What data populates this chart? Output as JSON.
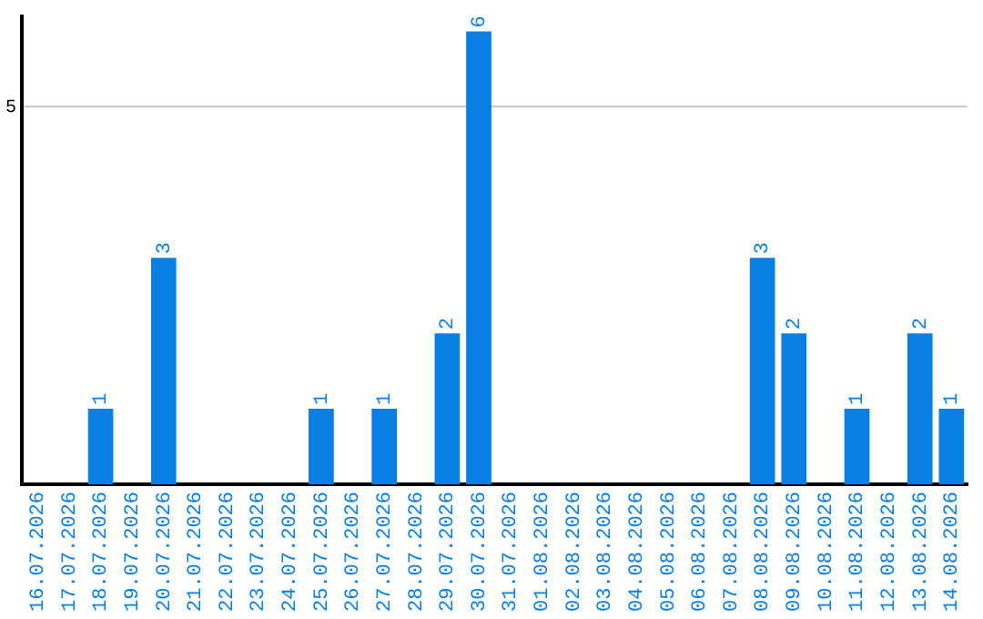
{
  "chart_data": {
    "type": "bar",
    "categories": [
      "16.07.2026",
      "17.07.2026",
      "18.07.2026",
      "19.07.2026",
      "20.07.2026",
      "21.07.2026",
      "22.07.2026",
      "23.07.2026",
      "24.07.2026",
      "25.07.2026",
      "26.07.2026",
      "27.07.2026",
      "28.07.2026",
      "29.07.2026",
      "30.07.2026",
      "31.07.2026",
      "01.08.2026",
      "02.08.2026",
      "03.08.2026",
      "04.08.2026",
      "05.08.2026",
      "06.08.2026",
      "07.08.2026",
      "08.08.2026",
      "09.08.2026",
      "10.08.2026",
      "11.08.2026",
      "12.08.2026",
      "13.08.2026",
      "14.08.2026"
    ],
    "values": [
      0,
      0,
      1,
      0,
      3,
      0,
      0,
      0,
      0,
      1,
      0,
      1,
      0,
      2,
      6,
      0,
      0,
      0,
      0,
      0,
      0,
      0,
      0,
      3,
      2,
      0,
      1,
      0,
      2,
      1
    ],
    "value_labels": [
      null,
      null,
      "1",
      null,
      "3",
      null,
      null,
      null,
      null,
      "1",
      null,
      "1",
      null,
      "2",
      "6",
      null,
      null,
      null,
      null,
      null,
      null,
      null,
      null,
      "3",
      "2",
      null,
      "1",
      null,
      "2",
      "1"
    ],
    "color": "#0a7fe3",
    "ylim": [
      0,
      6.2
    ],
    "yticks": [
      5
    ],
    "grid": "y",
    "legend": false
  }
}
